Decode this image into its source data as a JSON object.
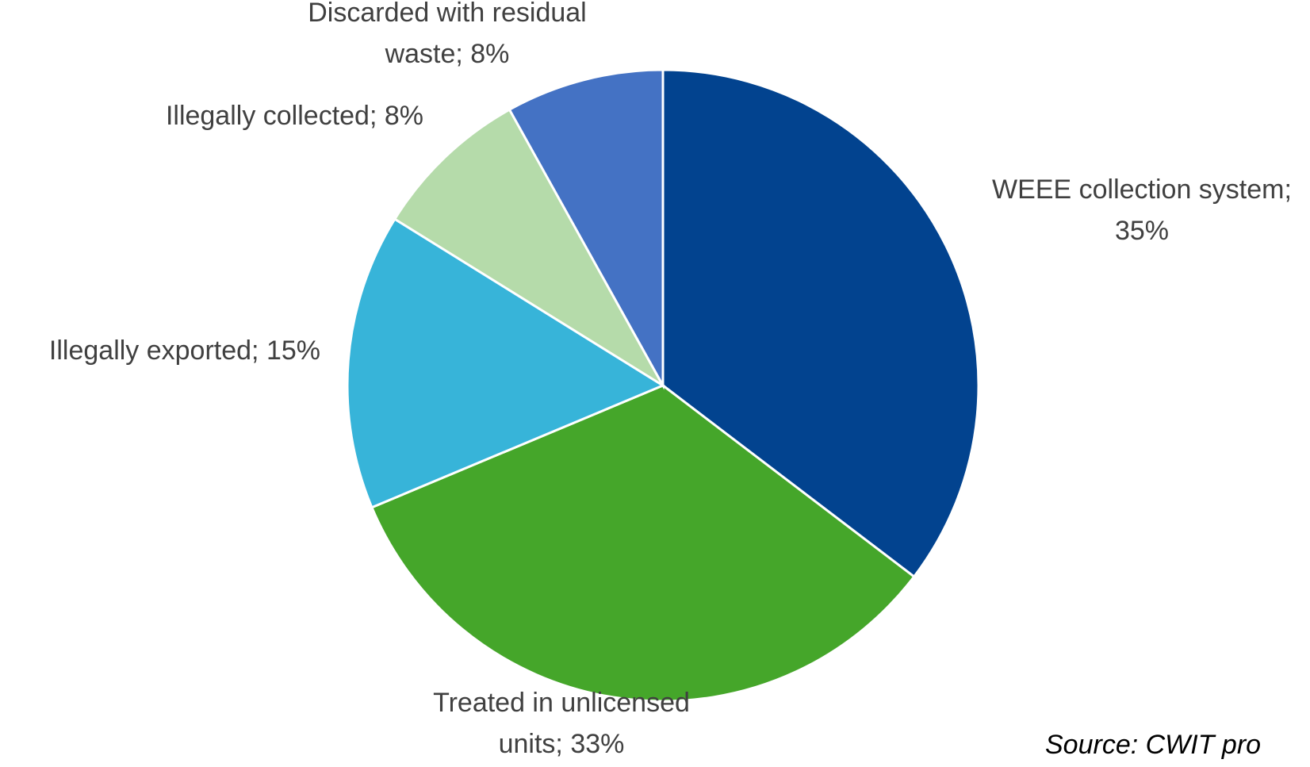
{
  "chart_data": {
    "type": "pie",
    "title": "",
    "slices": [
      {
        "label": "WEEE collection system",
        "label_lines": [
          "WEEE collection system;",
          "35%"
        ],
        "value": 35,
        "color": "#02438F"
      },
      {
        "label": "Treated in unlicensed units",
        "label_lines": [
          "Treated in unlicensed",
          "units; 33%"
        ],
        "value": 33,
        "color": "#45A62A"
      },
      {
        "label": "Illegally exported",
        "label_lines": [
          "Illegally exported; 15%"
        ],
        "value": 15,
        "color": "#37B4D9"
      },
      {
        "label": "Illegally collected",
        "label_lines": [
          "Illegally collected; 8%"
        ],
        "value": 8,
        "color": "#B5DBAA"
      },
      {
        "label": "Discarded with residual waste",
        "label_lines": [
          "Discarded with residual",
          "waste; 8%"
        ],
        "value": 8,
        "color": "#4472C4"
      }
    ],
    "start": "12 o'clock",
    "direction": "clockwise",
    "source": "Source: CWIT pro"
  }
}
